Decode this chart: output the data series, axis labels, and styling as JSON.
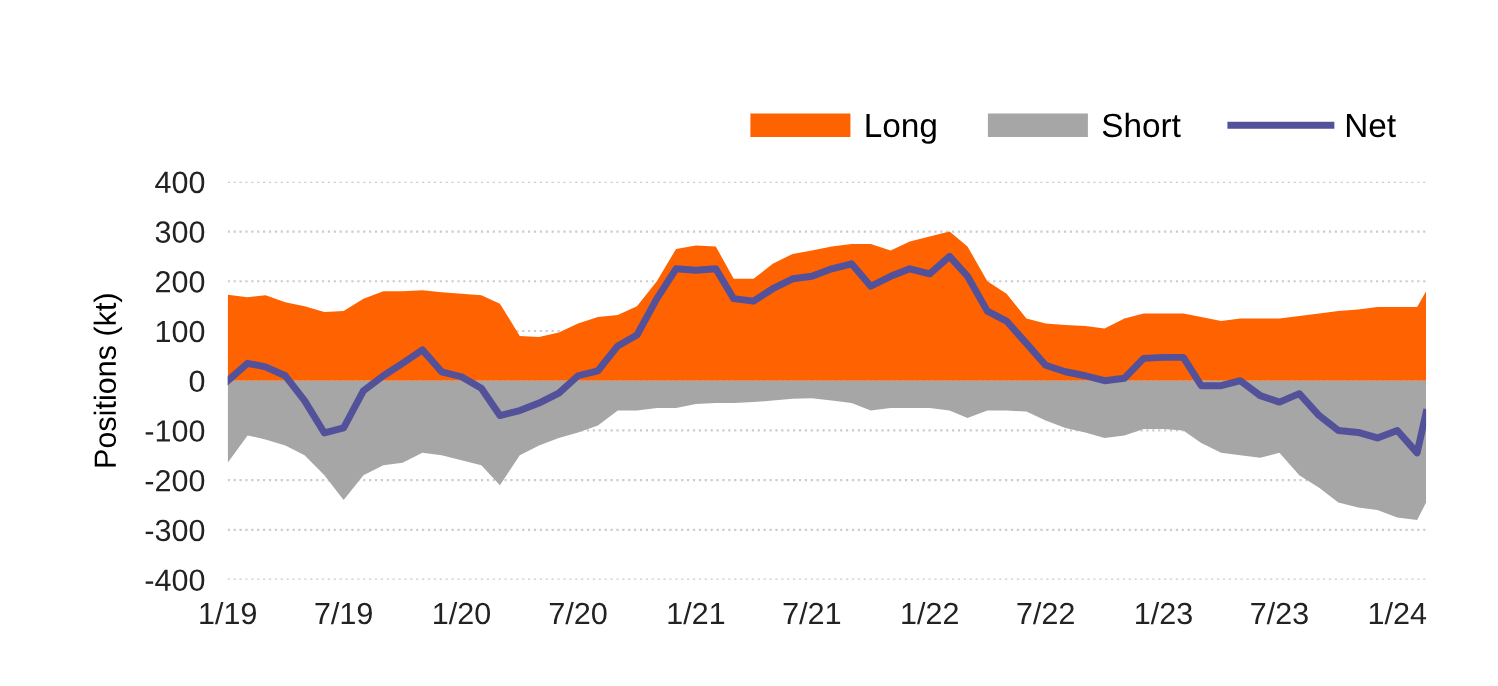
{
  "chart_data": {
    "type": "area",
    "ylabel": "Positions (kt)",
    "x": [
      "2019-01-01",
      "2019-02-01",
      "2019-03-01",
      "2019-04-01",
      "2019-05-01",
      "2019-06-01",
      "2019-07-01",
      "2019-08-01",
      "2019-09-01",
      "2019-10-01",
      "2019-11-01",
      "2019-12-01",
      "2020-01-01",
      "2020-02-01",
      "2020-03-01",
      "2020-04-01",
      "2020-05-01",
      "2020-06-01",
      "2020-07-01",
      "2020-08-01",
      "2020-09-01",
      "2020-10-01",
      "2020-11-01",
      "2020-12-01",
      "2021-01-01",
      "2021-02-01",
      "2021-03-01",
      "2021-04-01",
      "2021-05-01",
      "2021-06-01",
      "2021-07-01",
      "2021-08-01",
      "2021-09-01",
      "2021-10-01",
      "2021-11-01",
      "2021-12-01",
      "2022-01-01",
      "2022-02-01",
      "2022-03-01",
      "2022-04-01",
      "2022-05-01",
      "2022-06-01",
      "2022-07-01",
      "2022-08-01",
      "2022-09-01",
      "2022-10-01",
      "2022-11-01",
      "2022-12-01",
      "2023-01-01",
      "2023-02-01",
      "2023-03-01",
      "2023-04-01",
      "2023-05-01",
      "2023-06-01",
      "2023-07-01",
      "2023-08-01",
      "2023-09-01",
      "2023-10-01",
      "2023-11-01",
      "2023-12-01",
      "2024-01-01",
      "2024-02-01",
      "2024-02-15"
    ],
    "series": [
      {
        "name": "Long",
        "color": "#ff6200",
        "values": [
          173,
          168,
          172,
          158,
          150,
          138,
          140,
          165,
          180,
          180,
          182,
          178,
          175,
          172,
          155,
          90,
          88,
          97,
          115,
          128,
          132,
          150,
          200,
          265,
          272,
          270,
          205,
          205,
          235,
          255,
          262,
          270,
          275,
          275,
          262,
          280,
          290,
          300,
          270,
          200,
          175,
          125,
          115,
          112,
          110,
          105,
          125,
          135,
          135,
          135,
          128,
          120,
          125,
          125,
          125,
          130,
          135,
          140,
          143,
          148,
          148,
          148,
          180
        ]
      },
      {
        "name": "Short",
        "color": "#a6a6a6",
        "values": [
          -165,
          -110,
          -118,
          -130,
          -150,
          -190,
          -240,
          -190,
          -170,
          -165,
          -145,
          -150,
          -160,
          -170,
          -210,
          -150,
          -130,
          -115,
          -104,
          -90,
          -60,
          -60,
          -55,
          -55,
          -47,
          -45,
          -45,
          -43,
          -40,
          -36,
          -35,
          -40,
          -45,
          -60,
          -55,
          -55,
          -55,
          -60,
          -75,
          -60,
          -60,
          -62,
          -80,
          -95,
          -104,
          -115,
          -110,
          -97,
          -97,
          -100,
          -125,
          -145,
          -150,
          -155,
          -145,
          -190,
          -215,
          -245,
          -255,
          -260,
          -275,
          -280,
          -245
        ]
      },
      {
        "name": "Net",
        "type": "line",
        "color": "#525199",
        "values": [
          0,
          35,
          28,
          10,
          -40,
          -105,
          -95,
          -20,
          10,
          35,
          62,
          18,
          8,
          -15,
          -70,
          -60,
          -45,
          -25,
          10,
          20,
          70,
          92,
          165,
          225,
          222,
          225,
          165,
          160,
          185,
          205,
          210,
          225,
          235,
          190,
          210,
          225,
          215,
          250,
          210,
          140,
          120,
          75,
          31,
          18,
          10,
          0,
          5,
          45,
          47,
          47,
          -10,
          -10,
          0,
          -30,
          -43,
          -26,
          -70,
          -100,
          -104,
          -115,
          -100,
          -145,
          -64
        ]
      }
    ],
    "xlim": [
      "2019-01-01",
      "2024-02-15"
    ],
    "xticks": [
      {
        "value": "2019-01-01",
        "label": "1/19"
      },
      {
        "value": "2019-07-01",
        "label": "7/19"
      },
      {
        "value": "2020-01-01",
        "label": "1/20"
      },
      {
        "value": "2020-07-01",
        "label": "7/20"
      },
      {
        "value": "2021-01-01",
        "label": "1/21"
      },
      {
        "value": "2021-07-01",
        "label": "7/21"
      },
      {
        "value": "2022-01-01",
        "label": "1/22"
      },
      {
        "value": "2022-07-01",
        "label": "7/22"
      },
      {
        "value": "2023-01-01",
        "label": "1/23"
      },
      {
        "value": "2023-07-01",
        "label": "7/23"
      },
      {
        "value": "2024-01-01",
        "label": "1/24"
      }
    ],
    "ylim": [
      -400,
      400
    ],
    "yticks": [
      -400,
      -300,
      -200,
      -100,
      0,
      100,
      200,
      300,
      400
    ],
    "grid": "y",
    "legend": "top right"
  }
}
